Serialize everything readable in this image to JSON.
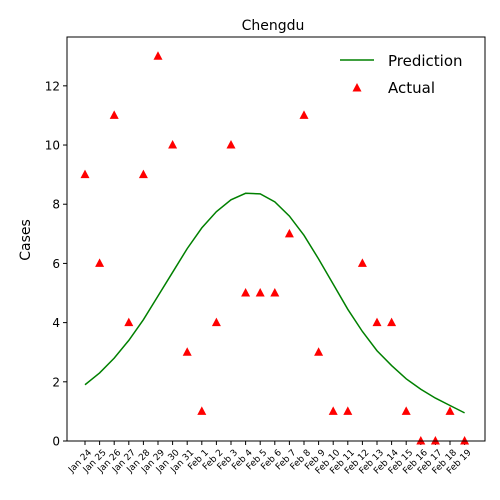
{
  "chart_data": {
    "type": "line",
    "title": "Chengdu",
    "xlabel": "",
    "ylabel": "Cases",
    "categories": [
      "Jan 24",
      "Jan 25",
      "Jan 26",
      "Jan 27",
      "Jan 28",
      "Jan 29",
      "Jan 30",
      "Jan 31",
      "Feb 1",
      "Feb 2",
      "Feb 3",
      "Feb 4",
      "Feb 5",
      "Feb 6",
      "Feb 7",
      "Feb 8",
      "Feb 9",
      "Feb 10",
      "Feb 11",
      "Feb 12",
      "Feb 13",
      "Feb 14",
      "Feb 15",
      "Feb 16",
      "Feb 17",
      "Feb 18",
      "Feb 19"
    ],
    "ylim": [
      0,
      13.65
    ],
    "yticks": [
      0,
      2,
      4,
      6,
      8,
      10,
      12
    ],
    "grid": false,
    "legend_position": "top-right",
    "series": [
      {
        "name": "Prediction",
        "kind": "line",
        "color": "#008000",
        "values": [
          1.9,
          2.3,
          2.8,
          3.4,
          4.1,
          4.9,
          5.7,
          6.5,
          7.2,
          7.75,
          8.15,
          8.37,
          8.35,
          8.08,
          7.6,
          6.95,
          6.15,
          5.3,
          4.45,
          3.7,
          3.05,
          2.55,
          2.1,
          1.75,
          1.45,
          1.2,
          0.95
        ]
      },
      {
        "name": "Actual",
        "kind": "scatter",
        "marker": "triangle",
        "color": "#ff0000",
        "values": [
          9,
          6,
          11,
          4,
          9,
          13,
          10,
          3,
          1,
          4,
          10,
          5,
          5,
          5,
          7,
          11,
          3,
          1,
          1,
          6,
          4,
          4,
          1,
          0,
          0,
          1,
          0
        ]
      }
    ]
  }
}
